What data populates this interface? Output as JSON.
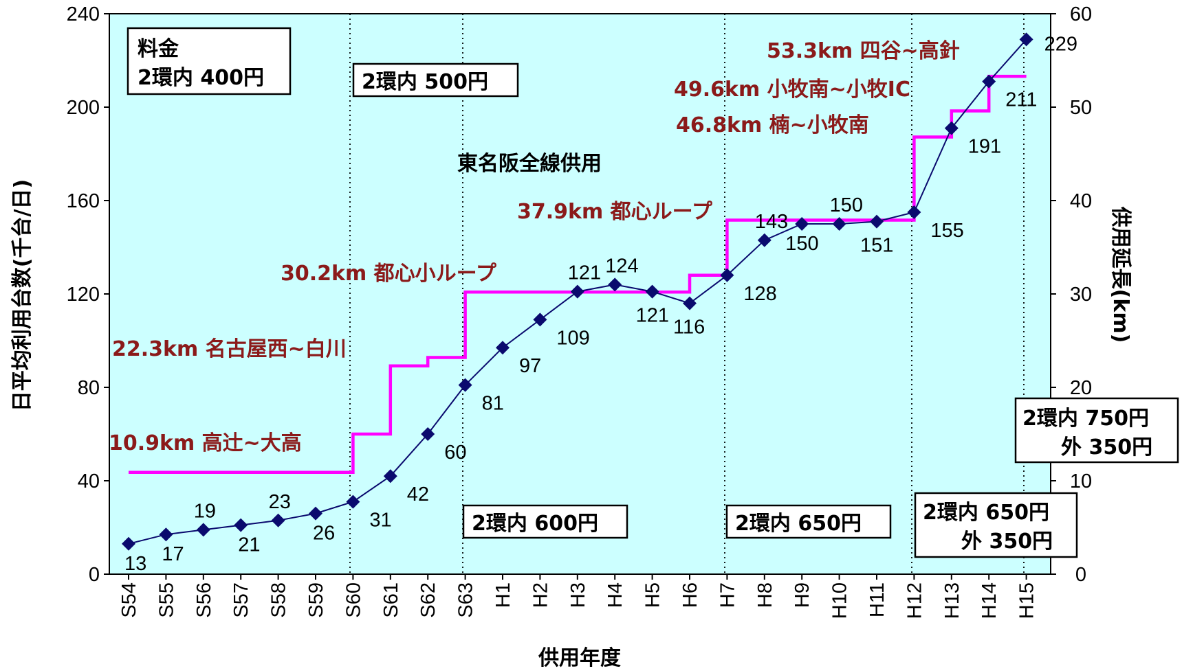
{
  "chart_data": {
    "type": "line",
    "xlabel": "供用年度",
    "ylabel": "日平均利用台数(千台/日)",
    "y2label": "供用延長(km)",
    "ylim": [
      0,
      240
    ],
    "y2lim": [
      0,
      60
    ],
    "yticks": [
      0,
      40,
      80,
      120,
      160,
      200,
      240
    ],
    "y2ticks": [
      0,
      10,
      20,
      30,
      40,
      50,
      60
    ],
    "categories": [
      "S54",
      "S55",
      "S56",
      "S57",
      "S58",
      "S59",
      "S60",
      "S61",
      "S62",
      "S63",
      "H1",
      "H2",
      "H3",
      "H4",
      "H5",
      "H6",
      "H7",
      "H8",
      "H9",
      "H10",
      "H11",
      "H12",
      "H13",
      "H14",
      "H15"
    ],
    "series": [
      {
        "axis": "left",
        "color": "#0a0a6e",
        "values": [
          13,
          17,
          19,
          21,
          23,
          26,
          31,
          42,
          60,
          81,
          97,
          109,
          121,
          124,
          121,
          116,
          128,
          143,
          150,
          150,
          151,
          155,
          191,
          211,
          229
        ],
        "labels": [
          "13",
          "17",
          "19",
          "21",
          "23",
          "26",
          "31",
          "42",
          "60",
          "81",
          "97",
          "109",
          "121",
          "124",
          "121",
          "116",
          "128",
          "143",
          "150",
          "150",
          "151",
          "155",
          "191",
          "211",
          "229"
        ]
      },
      {
        "axis": "right",
        "type": "step",
        "color": "#ff00ff",
        "values": [
          10.9,
          10.9,
          10.9,
          10.9,
          10.9,
          10.9,
          15,
          22.3,
          23.2,
          30.2,
          30.2,
          30.2,
          30.2,
          30.2,
          30.2,
          32,
          37.9,
          37.9,
          37.9,
          37.9,
          37.9,
          46.8,
          49.6,
          53.3,
          53.3
        ]
      }
    ],
    "segment_labels": [
      "10.9km 高辻~大高",
      "22.3km 名古屋西~白川",
      "30.2km 都心小ループ",
      "37.9km 都心ループ",
      "46.8km 楠~小牧南",
      "49.6km 小牧南~小牧IC",
      "53.3km 四谷~高針"
    ],
    "annotation": "東名阪全線供用",
    "fare_boxes": [
      {
        "line1": "料金",
        "line2": "2環内 400円"
      },
      {
        "line1": "2環内 500円"
      },
      {
        "line1": "2環内 600円"
      },
      {
        "line1": "2環内 650円"
      },
      {
        "line1": "2環内 650円",
        "line2": "外 350円"
      },
      {
        "line1": "2環内 750円",
        "line2": "外 350円"
      }
    ],
    "background": "#ccffff",
    "grid": false
  }
}
